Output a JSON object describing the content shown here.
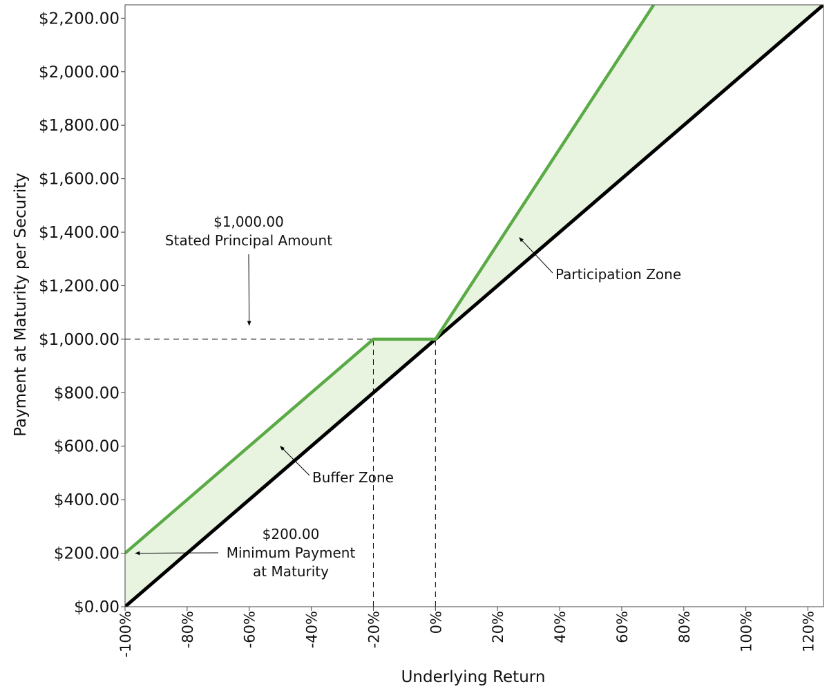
{
  "chart_data": {
    "type": "line",
    "xlabel": "Underlying Return",
    "ylabel": "Payment at Maturity per Security",
    "xlim": [
      -100,
      125
    ],
    "ylim": [
      0,
      2250
    ],
    "x_ticks": [
      "-100%",
      "-80%",
      "-60%",
      "-40%",
      "-20%",
      "0%",
      "20%",
      "40%",
      "60%",
      "80%",
      "100%",
      "120%"
    ],
    "y_ticks": [
      "$0.00",
      "$200.00",
      "$400.00",
      "$600.00",
      "$800.00",
      "$1,000.00",
      "$1,200.00",
      "$1,400.00",
      "$1,600.00",
      "$1,800.00",
      "$2,000.00",
      "$2,200.00"
    ],
    "grid": false,
    "series": [
      {
        "color": "#5aab46",
        "x": [
          -100,
          -20,
          0,
          70.3
        ],
        "y": [
          200,
          1000,
          1000,
          2250
        ]
      },
      {
        "color": "#000000",
        "x": [
          -100,
          125
        ],
        "y": [
          0,
          2250
        ]
      }
    ],
    "shaded_region_color": "#e8f3e0",
    "reference_lines": [
      {
        "type": "horizontal",
        "y": 1000,
        "x_from": -100,
        "x_to": 0
      },
      {
        "type": "vertical",
        "x": -20,
        "y_from": 0,
        "y_to": 1000
      },
      {
        "type": "vertical",
        "x": 0,
        "y_from": 0,
        "y_to": 1000
      }
    ],
    "annotations": [
      {
        "id": "principal",
        "lines": [
          "$1,000.00",
          "Stated Principal Amount"
        ],
        "arrow_to": [
          -60,
          1000
        ]
      },
      {
        "id": "participation",
        "lines": [
          "Participation Zone"
        ],
        "arrow_to": [
          27,
          1380
        ]
      },
      {
        "id": "buffer",
        "lines": [
          "Buffer Zone"
        ],
        "arrow_to": [
          -50,
          600
        ]
      },
      {
        "id": "minimum",
        "lines": [
          "$200.00",
          "Minimum Payment",
          "at Maturity"
        ],
        "arrow_to": [
          -98,
          200
        ]
      }
    ]
  }
}
